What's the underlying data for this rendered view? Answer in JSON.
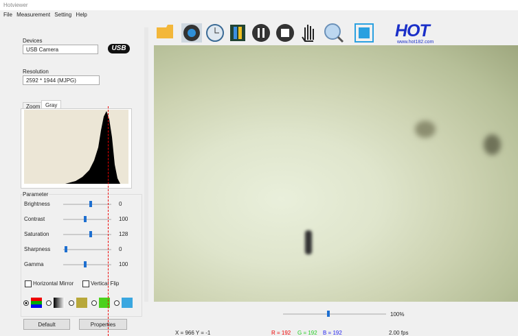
{
  "window": {
    "title": "Hotviewer"
  },
  "menu": [
    "File",
    "Measurement",
    "Setting",
    "Help"
  ],
  "devices": {
    "label": "Devices",
    "selected": "USB Camera",
    "badge": "USB"
  },
  "resolution": {
    "label": "Resolution",
    "selected": "2592 * 1944 (MJPG)"
  },
  "tabs": [
    "Zoom",
    "Gray"
  ],
  "parameter": {
    "label": "Parameter",
    "rows": [
      [
        "Brightness",
        "0"
      ],
      [
        "Contrast",
        "100"
      ],
      [
        "Saturation",
        "128"
      ],
      [
        "Sharpness",
        "0"
      ],
      [
        "Gamma",
        "100"
      ]
    ],
    "checkboxes": [
      "Horizontal Mirror",
      "Vertical Flip"
    ],
    "buttons": [
      "Default",
      "Properties"
    ]
  },
  "logo": {
    "text": "HOT",
    "url": "www.hot182.com"
  },
  "zoom": "100%",
  "status": {
    "position": "X = 966  Y = -1",
    "r": "R = 192",
    "g": "G = 192",
    "b": "B = 192",
    "fps": "2.00 fps"
  }
}
